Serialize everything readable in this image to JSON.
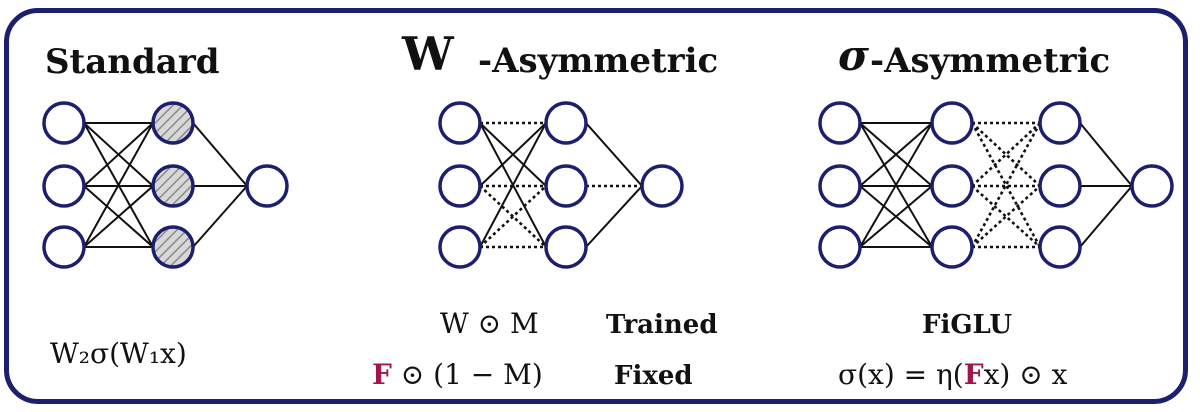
{
  "panels": {
    "standard": {
      "title": "Standard",
      "formula": "W₂σ(W₁x)"
    },
    "w_asymmetric": {
      "title_symbol": "W",
      "title_suffix": "-Asymmetric",
      "trained_formula": "W ⊙ M",
      "trained_label": "Trained",
      "fixed_formula_bold": "F",
      "fixed_formula_rest": " ⊙ (1 − M)",
      "fixed_label": "Fixed"
    },
    "sigma_asymmetric": {
      "title_symbol": "σ",
      "title_suffix": "-Asymmetric",
      "method_label": "FiGLU",
      "formula_pre": "σ(x) = η(",
      "formula_bold": "F",
      "formula_post": "x) ⊙ x"
    }
  },
  "colors": {
    "frame": "#1c1f6e",
    "neuron_stroke": "#1c1f6e",
    "fixed_highlight": "#a0154d",
    "dotted_green": "#2e9e3a",
    "dotted_magenta": "#d11fb0",
    "dotted_orange": "#ff8c1a",
    "dotted_salmon": "#f07a7a",
    "dotted_olive": "#8a8a1a",
    "dotted_purple": "#8a3ad6",
    "dotted_darkgreen": "#1a7a2a",
    "dotted_blue": "#3a5ad6",
    "dotted_pink": "#e0608a"
  }
}
